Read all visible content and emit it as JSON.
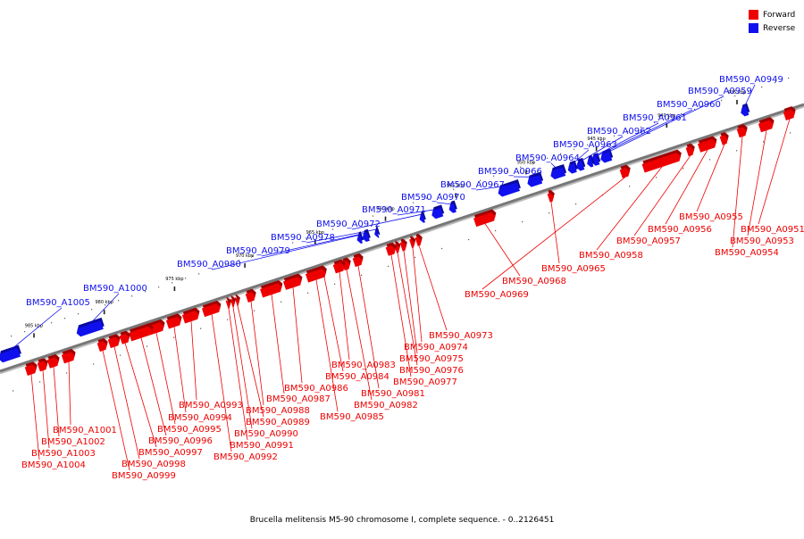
{
  "caption": "Brucella melitensis M5-90 chromosome I, complete sequence. - 0..2126451",
  "legend": [
    {
      "label": "Forward",
      "color": "#ee0000"
    },
    {
      "label": "Reverse",
      "color": "#1010ee"
    }
  ],
  "colors": {
    "forward": "#ee0000",
    "reverse": "#1010ee",
    "axis": "#777777"
  },
  "scale": {
    "unit": "kbp",
    "ticks": [
      935,
      940,
      945,
      950,
      955,
      960,
      965,
      970,
      975,
      980,
      985
    ]
  },
  "features": [
    {
      "label": "BM590_A0949",
      "strand": "reverse"
    },
    {
      "label": "BM590_A0951",
      "strand": "forward"
    },
    {
      "label": "BM590_A0953",
      "strand": "forward"
    },
    {
      "label": "BM590_A0954",
      "strand": "forward"
    },
    {
      "label": "BM590_A0955",
      "strand": "forward"
    },
    {
      "label": "BM590_A0956",
      "strand": "forward"
    },
    {
      "label": "BM590_A0957",
      "strand": "forward"
    },
    {
      "label": "BM590_A0958",
      "strand": "forward"
    },
    {
      "label": "BM590_A0959",
      "strand": "reverse"
    },
    {
      "label": "BM590_A0960",
      "strand": "reverse"
    },
    {
      "label": "BM590_A0961",
      "strand": "reverse"
    },
    {
      "label": "BM590_A0962",
      "strand": "reverse"
    },
    {
      "label": "BM590_A0963",
      "strand": "reverse"
    },
    {
      "label": "BM590_A0964",
      "strand": "reverse"
    },
    {
      "label": "BM590_A0965",
      "strand": "forward"
    },
    {
      "label": "BM590_A0966",
      "strand": "reverse"
    },
    {
      "label": "BM590_A0967",
      "strand": "reverse"
    },
    {
      "label": "BM590_A0968",
      "strand": "forward"
    },
    {
      "label": "BM590_A0969",
      "strand": "forward"
    },
    {
      "label": "BM590_A0970",
      "strand": "reverse"
    },
    {
      "label": "BM590_A0971",
      "strand": "reverse"
    },
    {
      "label": "BM590_A0972",
      "strand": "reverse"
    },
    {
      "label": "BM590_A0973",
      "strand": "forward"
    },
    {
      "label": "BM590_A0974",
      "strand": "forward"
    },
    {
      "label": "BM590_A0975",
      "strand": "forward"
    },
    {
      "label": "BM590_A0976",
      "strand": "forward"
    },
    {
      "label": "BM590_A0977",
      "strand": "forward"
    },
    {
      "label": "BM590_A0978",
      "strand": "reverse"
    },
    {
      "label": "BM590_A0979",
      "strand": "reverse"
    },
    {
      "label": "BM590_A0980",
      "strand": "reverse"
    },
    {
      "label": "BM590_A0981",
      "strand": "forward"
    },
    {
      "label": "BM590_A0982",
      "strand": "forward"
    },
    {
      "label": "BM590_A0983",
      "strand": "forward"
    },
    {
      "label": "BM590_A0984",
      "strand": "forward"
    },
    {
      "label": "BM590_A0985",
      "strand": "forward"
    },
    {
      "label": "BM590_A0986",
      "strand": "forward"
    },
    {
      "label": "BM590_A0987",
      "strand": "forward"
    },
    {
      "label": "BM590_A0988",
      "strand": "forward"
    },
    {
      "label": "BM590_A0989",
      "strand": "forward"
    },
    {
      "label": "BM590_A0990",
      "strand": "forward"
    },
    {
      "label": "BM590_A0991",
      "strand": "forward"
    },
    {
      "label": "BM590_A0992",
      "strand": "forward"
    },
    {
      "label": "BM590_A0993",
      "strand": "forward"
    },
    {
      "label": "BM590_A0994",
      "strand": "forward"
    },
    {
      "label": "BM590_A0995",
      "strand": "forward"
    },
    {
      "label": "BM590_A0996",
      "strand": "forward"
    },
    {
      "label": "BM590_A0997",
      "strand": "forward"
    },
    {
      "label": "BM590_A0998",
      "strand": "forward"
    },
    {
      "label": "BM590_A0999",
      "strand": "forward"
    },
    {
      "label": "BM590_A1000",
      "strand": "reverse"
    },
    {
      "label": "BM590_A1001",
      "strand": "forward"
    },
    {
      "label": "BM590_A1002",
      "strand": "forward"
    },
    {
      "label": "BM590_A1003",
      "strand": "forward"
    },
    {
      "label": "BM590_A1004",
      "strand": "forward"
    },
    {
      "label": "BM590_A1005",
      "strand": "reverse"
    }
  ]
}
